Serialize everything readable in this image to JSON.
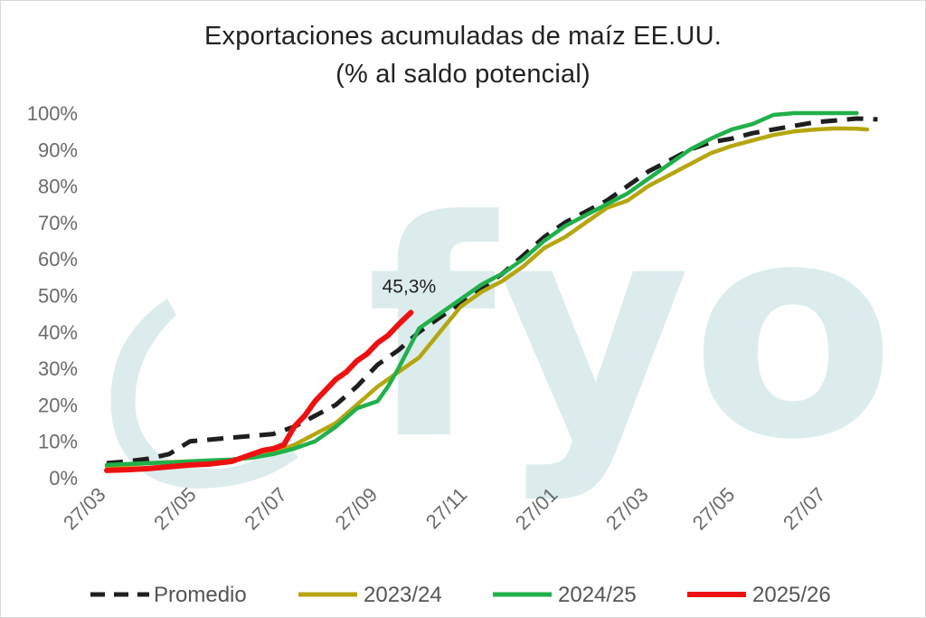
{
  "chart_data": {
    "type": "line",
    "title_line1": "Exportaciones acumuladas de maíz EE.UU.",
    "title_line2": "(% al saldo potencial)",
    "watermark": "fyo",
    "y_ticks": [
      "0%",
      "10%",
      "20%",
      "30%",
      "40%",
      "50%",
      "60%",
      "70%",
      "80%",
      "90%",
      "100%"
    ],
    "ylim": [
      0,
      100
    ],
    "x_ticks": [
      "27/03",
      "27/05",
      "27/07",
      "27/09",
      "27/11",
      "27/01",
      "27/03",
      "27/05",
      "27/07"
    ],
    "x_tick_weeks": [
      0,
      8.7,
      17.4,
      26.1,
      34.7,
      43.4,
      52.1,
      60.4,
      69.1
    ],
    "xlim": [
      0,
      75
    ],
    "grid": false,
    "legend_position": "bottom",
    "annotation": {
      "text": "45,3%",
      "series": "2025/26",
      "x": 29.2,
      "y": 45.3
    },
    "series": [
      {
        "name": "Promedio",
        "color": "#1f1f1f",
        "dash": true,
        "x": [
          0,
          2,
          4,
          6,
          8,
          10,
          12,
          14,
          16,
          18,
          20,
          22,
          24,
          26,
          28,
          30,
          32,
          34,
          36,
          38,
          40,
          42,
          44,
          46,
          48,
          50,
          52,
          54,
          56,
          58,
          60,
          62,
          64,
          66,
          68,
          70,
          72,
          74
        ],
        "y": [
          4,
          4.5,
          5.2,
          6.5,
          10,
          10.5,
          11,
          11.5,
          12,
          14,
          17,
          20,
          25,
          31,
          35,
          40,
          44,
          48,
          52,
          56,
          61,
          66,
          70,
          73,
          76,
          80,
          84,
          87,
          90,
          92,
          93,
          94.5,
          95.5,
          96.5,
          97.5,
          98,
          98.5,
          98.3
        ]
      },
      {
        "name": "2023/24",
        "color": "#b5a610",
        "dash": false,
        "x": [
          0,
          2,
          4,
          6,
          8,
          10,
          12,
          14,
          16,
          18,
          20,
          22,
          24,
          26,
          28,
          30,
          32,
          34,
          36,
          38,
          40,
          42,
          44,
          46,
          48,
          50,
          52,
          54,
          56,
          58,
          60,
          62,
          64,
          66,
          68,
          70,
          72,
          73
        ],
        "y": [
          3,
          3.5,
          4,
          4.3,
          4.5,
          4.7,
          5,
          5.5,
          7,
          9,
          12,
          15,
          20,
          25,
          29,
          33,
          40,
          47,
          51,
          54,
          58,
          63,
          66,
          70,
          74,
          76,
          80,
          83,
          86,
          89,
          91,
          92.5,
          94,
          95,
          95.5,
          95.8,
          95.7,
          95.5
        ]
      },
      {
        "name": "2024/25",
        "color": "#21b04b",
        "dash": false,
        "x": [
          0,
          2,
          4,
          6,
          8,
          10,
          12,
          14,
          16,
          18,
          20,
          22,
          24,
          26,
          27,
          28,
          30,
          32,
          34,
          36,
          38,
          40,
          42,
          44,
          46,
          48,
          50,
          52,
          54,
          56,
          58,
          60,
          62,
          64,
          66,
          68,
          70,
          72
        ],
        "y": [
          3.5,
          3.8,
          4,
          4.2,
          4.5,
          4.8,
          5,
          5.5,
          6.5,
          8,
          10,
          14,
          19,
          21,
          25,
          30,
          41,
          45,
          49,
          53,
          56,
          60,
          65,
          69,
          72,
          75,
          78,
          82,
          86,
          90,
          93,
          95.5,
          97,
          99.5,
          100,
          100,
          100,
          100
        ]
      },
      {
        "name": "2025/26",
        "color": "#ee1111",
        "dash": false,
        "x": [
          0,
          2,
          4,
          6,
          8,
          10,
          12,
          14,
          15,
          16,
          17,
          18,
          19,
          20,
          21,
          22,
          23,
          24,
          25,
          26,
          27,
          28,
          29.2
        ],
        "y": [
          2,
          2.2,
          2.5,
          3,
          3.5,
          3.8,
          4.5,
          6.5,
          7.5,
          8,
          9,
          14,
          17,
          21,
          24,
          27,
          29,
          32,
          34,
          37,
          39,
          42,
          45.3
        ]
      }
    ]
  }
}
